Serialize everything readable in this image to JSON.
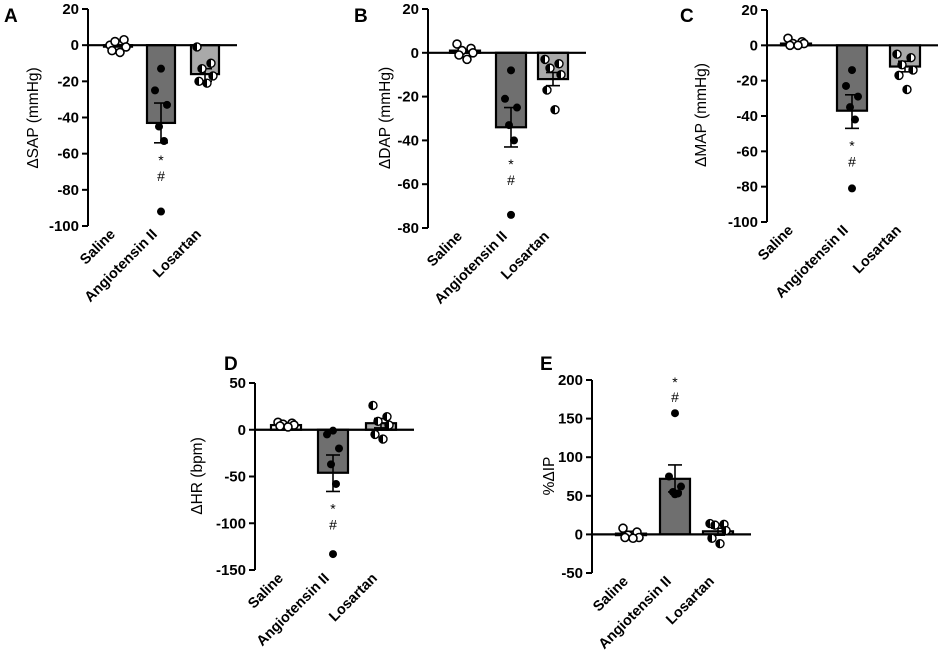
{
  "chart_data": [
    {
      "id": "A",
      "panel_label": "A",
      "type": "bar",
      "ylabel": "ΔSAP (mmHg)",
      "ylim": [
        -100,
        20
      ],
      "yticks": [
        20,
        0,
        -20,
        -40,
        -60,
        -80,
        -100
      ],
      "categories": [
        "Saline",
        "Angiotensin II",
        "Losartan"
      ],
      "means": [
        0,
        -43,
        -16
      ],
      "sem_low": [
        0,
        -54,
        -20
      ],
      "sem_high": [
        0,
        -32,
        -13
      ],
      "points": [
        [
          0,
          3,
          2,
          -1,
          -3,
          -4
        ],
        [
          -13,
          -25,
          -33,
          -45,
          -53,
          -92
        ],
        [
          -1,
          -10,
          -13,
          -17,
          -20,
          -21
        ]
      ],
      "significance": [
        null,
        [
          "*",
          "#"
        ],
        null
      ]
    },
    {
      "id": "B",
      "panel_label": "B",
      "type": "bar",
      "ylabel": "ΔDAP (mmHg)",
      "ylim": [
        -80,
        20
      ],
      "yticks": [
        20,
        0,
        -20,
        -40,
        -60,
        -80
      ],
      "categories": [
        "Saline",
        "Angiotensin II",
        "Losartan"
      ],
      "means": [
        1,
        -34,
        -12
      ],
      "sem_low": [
        1,
        -43,
        -15
      ],
      "sem_high": [
        1,
        -25,
        -9
      ],
      "points": [
        [
          4,
          2,
          1,
          0,
          -1,
          -3
        ],
        [
          -8,
          -21,
          -25,
          -33,
          -40,
          -74
        ],
        [
          -3,
          -5,
          -7,
          -10,
          -17,
          -26
        ]
      ],
      "significance": [
        null,
        [
          "*",
          "#"
        ],
        null
      ]
    },
    {
      "id": "C",
      "panel_label": "C",
      "type": "bar",
      "ylabel": "ΔMAP (mmHg)",
      "ylim": [
        -100,
        20
      ],
      "yticks": [
        20,
        0,
        -20,
        -40,
        -60,
        -80,
        -100
      ],
      "categories": [
        "Saline",
        "Angiotensin II",
        "Losartan"
      ],
      "means": [
        1,
        -37,
        -12
      ],
      "sem_low": [
        1,
        -47,
        -15
      ],
      "sem_high": [
        1,
        -28,
        -9
      ],
      "points": [
        [
          4,
          2,
          1,
          1,
          0,
          0
        ],
        [
          -14,
          -23,
          -29,
          -35,
          -42,
          -81
        ],
        [
          -5,
          -7,
          -11,
          -14,
          -17,
          -25
        ]
      ],
      "significance": [
        null,
        [
          "*",
          "#"
        ],
        null
      ]
    },
    {
      "id": "D",
      "panel_label": "D",
      "type": "bar",
      "ylabel": "ΔHR (bpm)",
      "ylim": [
        -150,
        50
      ],
      "yticks": [
        50,
        0,
        -50,
        -100,
        -150
      ],
      "categories": [
        "Saline",
        "Angiotensin II",
        "Losartan"
      ],
      "means": [
        5,
        -46,
        7
      ],
      "sem_low": [
        3,
        -66,
        2
      ],
      "sem_high": [
        7,
        -27,
        12
      ],
      "points": [
        [
          8,
          7,
          6,
          5,
          4,
          3
        ],
        [
          -1,
          -5,
          -20,
          -37,
          -58,
          -133
        ],
        [
          26,
          14,
          9,
          5,
          -5,
          -10
        ]
      ],
      "significance": [
        null,
        [
          "*",
          "#"
        ],
        null
      ]
    },
    {
      "id": "E",
      "panel_label": "E",
      "type": "bar",
      "ylabel": "%ΔIP",
      "ylim": [
        -50,
        200
      ],
      "yticks": [
        200,
        150,
        100,
        50,
        0,
        -50
      ],
      "categories": [
        "Saline",
        "Angiotensin II",
        "Losartan"
      ],
      "means": [
        1,
        72,
        4
      ],
      "sem_low": [
        -2,
        55,
        -1
      ],
      "sem_high": [
        4,
        90,
        8
      ],
      "points": [
        [
          8,
          3,
          -1,
          -4,
          -4,
          -5
        ],
        [
          157,
          75,
          62,
          55,
          53,
          52
        ],
        [
          14,
          13,
          12,
          5,
          -5,
          -12
        ]
      ],
      "significance": [
        null,
        [
          "*",
          "#"
        ],
        null
      ]
    }
  ],
  "colors": {
    "saline_bar": "#ffffff",
    "angiotensin_bar": "#6f6f6f",
    "losartan_bar": "#a9a9a9",
    "ink": "#000000"
  }
}
